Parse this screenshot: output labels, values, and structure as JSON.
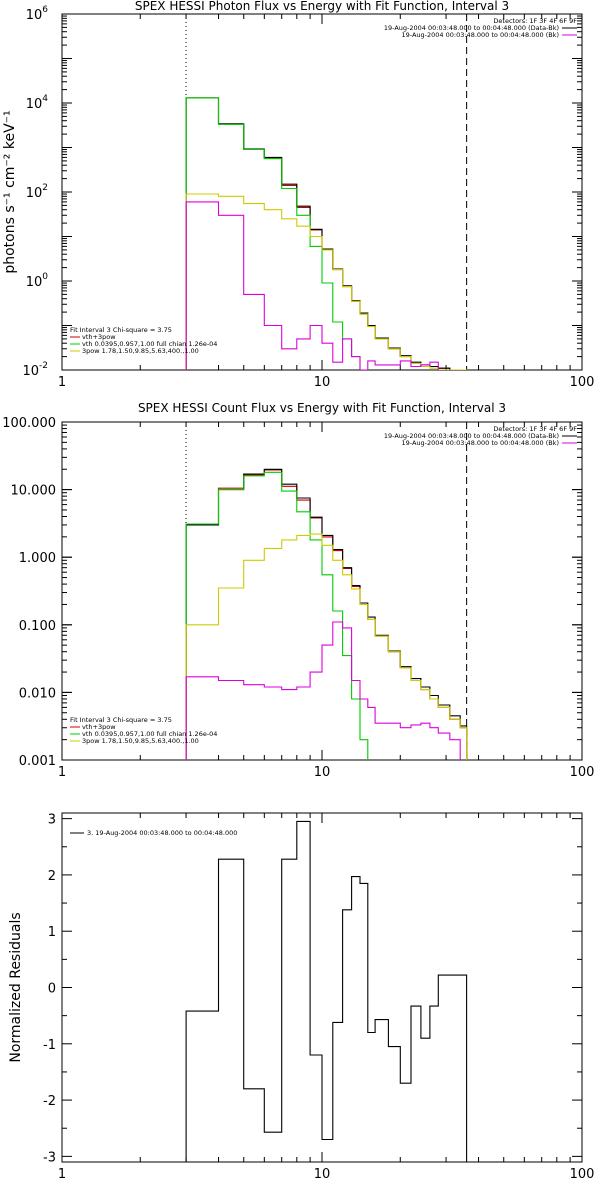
{
  "chart_data": [
    {
      "type": "line",
      "title": "SPEX HESSI Photon Flux vs Energy with Fit Function, Interval 3",
      "ylabel": "photons s⁻¹ cm⁻² keV⁻¹",
      "xlabel": "",
      "xscale": "log",
      "yscale": "log",
      "xlim": [
        1,
        100
      ],
      "ylim": [
        0.01,
        1000000
      ],
      "x_ticks": [
        {
          "value": 1,
          "label": "1"
        },
        {
          "value": 10,
          "label": "10"
        },
        {
          "value": 100,
          "label": "100"
        }
      ],
      "y_ticks": [
        {
          "value": 0.01,
          "label": "10",
          "exp": "-2"
        },
        {
          "value": 1,
          "label": "10",
          "exp": "0"
        },
        {
          "value": 100,
          "label": "10",
          "exp": "2"
        },
        {
          "value": 10000,
          "label": "10",
          "exp": "4"
        },
        {
          "value": 1000000,
          "label": "10",
          "exp": "6"
        }
      ],
      "vlines": [
        {
          "x": 3.0,
          "style": "dotted"
        },
        {
          "x": 36.0,
          "style": "dashed"
        }
      ],
      "legend_right": [
        {
          "text": "Detectors: 1F 3F 4F 6F 9F",
          "color": "#000000"
        },
        {
          "text": "19-Aug-2004 00:03:48.000 to 00:04:48.000 (Data-Bk)",
          "color": "#000000"
        },
        {
          "text": "19-Aug-2004 00:03:48.000 to 00:04:48.000 (Bk)",
          "color": "#dd00dd"
        }
      ],
      "legend_left_title": "Fit Interval 3   Chi-square = 3.75",
      "legend_left": [
        {
          "text": "vth+3pow",
          "color": "#cc0000"
        },
        {
          "text": "vth 0.0395,0.957,1.00  full chian 1.26e-04",
          "color": "#00cc00"
        },
        {
          "text": "3pow 1.78,1.50,9.85,5.63,400.,1.00",
          "color": "#cccc00"
        }
      ],
      "bin_edges": [
        3.0,
        4.0,
        5.0,
        6.0,
        7.0,
        8.0,
        9.0,
        10.0,
        11.0,
        12.0,
        13.0,
        14.0,
        15.0,
        16.0,
        18.0,
        20.0,
        22.0,
        24.0,
        26.0,
        28.0,
        31.0,
        34.0,
        36.0
      ],
      "series": [
        {
          "name": "vth+3pow",
          "color": "#cc0000",
          "values": [
            13000,
            3300,
            900,
            580,
            140,
            45,
            14,
            5,
            1.8,
            0.75,
            0.35,
            0.18,
            0.095,
            0.05,
            0.03,
            0.02,
            0.014,
            0.012,
            0.012,
            0.011,
            null,
            null
          ]
        },
        {
          "name": "Data-Bk",
          "color": "#000000",
          "values": [
            13000,
            3400,
            920,
            600,
            150,
            48,
            14.5,
            5.2,
            1.85,
            0.78,
            0.36,
            0.19,
            0.1,
            0.052,
            0.031,
            0.021,
            0.015,
            0.013,
            0.012,
            0.011,
            null,
            null
          ]
        },
        {
          "name": "vth",
          "color": "#00cc00",
          "values": [
            13000,
            3300,
            900,
            560,
            120,
            30,
            6,
            0.9,
            0.12,
            0.05,
            0.02,
            0.01,
            null,
            null,
            null,
            null,
            null,
            null,
            null,
            null,
            null,
            null
          ]
        },
        {
          "name": "3pow",
          "color": "#cccc00",
          "values": [
            90,
            80,
            55,
            40,
            25,
            17,
            10,
            5,
            1.8,
            0.75,
            0.35,
            0.18,
            0.095,
            0.05,
            0.03,
            0.02,
            0.014,
            0.012,
            0.011,
            0.01,
            0.01,
            0.01
          ]
        },
        {
          "name": "Bk",
          "color": "#dd00dd",
          "values": [
            60,
            30,
            0.5,
            0.1,
            0.03,
            0.05,
            0.1,
            0.04,
            0.015,
            0.05,
            0.02,
            0.01,
            0.016,
            0.013,
            0.013,
            0.016,
            0.012,
            0.013,
            0.015,
            null,
            null,
            null
          ]
        }
      ]
    },
    {
      "type": "line",
      "title": "SPEX HESSI Count Flux vs Energy with Fit Function, Interval 3",
      "xlabel": "",
      "ylabel": "",
      "xscale": "log",
      "yscale": "log",
      "xlim": [
        1,
        100
      ],
      "ylim": [
        0.001,
        100
      ],
      "x_ticks": [
        {
          "value": 1,
          "label": "1"
        },
        {
          "value": 10,
          "label": "10"
        },
        {
          "value": 100,
          "label": "100"
        }
      ],
      "y_ticks": [
        {
          "value": 0.001,
          "label": "0.001"
        },
        {
          "value": 0.01,
          "label": "0.010"
        },
        {
          "value": 0.1,
          "label": "0.100"
        },
        {
          "value": 1,
          "label": "1.000"
        },
        {
          "value": 10,
          "label": "10.000"
        },
        {
          "value": 100,
          "label": "100.000"
        }
      ],
      "vlines": [
        {
          "x": 3.0,
          "style": "dotted"
        },
        {
          "x": 36.0,
          "style": "dashed"
        }
      ],
      "legend_right": [
        {
          "text": "Detectors: 1F 3F 4F 6F 9F",
          "color": "#000000"
        },
        {
          "text": "19-Aug-2004 00:03:48.000 to 00:04:48.000 (Data-Bk)",
          "color": "#000000"
        },
        {
          "text": "19-Aug-2004 00:03:48.000 to 00:04:48.000 (Bk)",
          "color": "#dd00dd"
        }
      ],
      "legend_left_title": "Fit Interval 3   Chi-square = 3.75",
      "legend_left": [
        {
          "text": "vth+3pow",
          "color": "#cc0000"
        },
        {
          "text": "vth 0.0395,0.957,1.00  full chian 1.26e-04",
          "color": "#00cc00"
        },
        {
          "text": "3pow 1.78,1.50,9.85,5.63,400.,1.00",
          "color": "#cccc00"
        }
      ],
      "bin_edges": [
        3.0,
        4.0,
        5.0,
        6.0,
        7.0,
        8.0,
        9.0,
        10.0,
        11.0,
        12.0,
        13.0,
        14.0,
        15.0,
        16.0,
        18.0,
        20.0,
        22.0,
        24.0,
        26.0,
        28.0,
        31.0,
        34.0,
        36.0
      ],
      "series": [
        {
          "name": "vth+3pow",
          "color": "#cc0000",
          "values": [
            3.1,
            10.5,
            16.5,
            19.5,
            11.2,
            7,
            3.8,
            2.0,
            1.25,
            0.68,
            0.37,
            0.2,
            0.12,
            0.068,
            0.04,
            0.023,
            0.015,
            0.011,
            0.008,
            0.006,
            0.004,
            0.003
          ]
        },
        {
          "name": "Data-Bk",
          "color": "#000000",
          "values": [
            3.0,
            10.0,
            17.0,
            20.0,
            12.0,
            7.5,
            3.9,
            2.1,
            1.3,
            0.7,
            0.38,
            0.21,
            0.13,
            0.07,
            0.041,
            0.024,
            0.016,
            0.012,
            0.009,
            0.0065,
            0.0045,
            0.0032
          ]
        },
        {
          "name": "vth",
          "color": "#00cc00",
          "values": [
            3.1,
            10,
            16,
            18,
            9.5,
            4.7,
            1.8,
            0.55,
            0.16,
            0.035,
            0.008,
            0.002,
            0.0009,
            null,
            null,
            null,
            null,
            null,
            null,
            null,
            null,
            null
          ]
        },
        {
          "name": "3pow",
          "color": "#cccc00",
          "values": [
            0.1,
            0.35,
            0.9,
            1.35,
            1.8,
            2.1,
            2.2,
            1.5,
            0.9,
            0.55,
            0.34,
            0.2,
            0.12,
            0.068,
            0.04,
            0.023,
            0.015,
            0.011,
            0.008,
            0.006,
            0.004,
            0.003
          ]
        },
        {
          "name": "Bk",
          "color": "#dd00dd",
          "values": [
            0.017,
            0.015,
            0.013,
            0.012,
            0.011,
            0.012,
            0.02,
            0.05,
            0.11,
            0.09,
            0.015,
            0.008,
            0.006,
            0.0035,
            0.0035,
            0.003,
            0.0033,
            0.0035,
            0.003,
            0.0025,
            0.002,
            null
          ]
        }
      ]
    },
    {
      "type": "line",
      "title": "",
      "ylabel": "Normalized Residuals",
      "xlabel": "",
      "xscale": "log",
      "yscale": "linear",
      "xlim": [
        1,
        100
      ],
      "ylim": [
        -3.1,
        3.1
      ],
      "x_ticks": [
        {
          "value": 1,
          "label": "1"
        },
        {
          "value": 10,
          "label": "10"
        },
        {
          "value": 100,
          "label": "100"
        }
      ],
      "y_ticks": [
        {
          "value": -3,
          "label": "-3"
        },
        {
          "value": -2,
          "label": "-2"
        },
        {
          "value": -1,
          "label": "-1"
        },
        {
          "value": 0,
          "label": "0"
        },
        {
          "value": 1,
          "label": "1"
        },
        {
          "value": 2,
          "label": "2"
        },
        {
          "value": 3,
          "label": "3"
        }
      ],
      "legend_left": [
        {
          "text": "3. 19-Aug-2004 00:03:48.000 to 00:04:48.000",
          "color": "#000000"
        }
      ],
      "bin_edges": [
        3.0,
        4.0,
        5.0,
        6.0,
        7.0,
        8.0,
        9.0,
        10.0,
        11.0,
        12.0,
        13.0,
        14.0,
        15.0,
        16.0,
        18.0,
        20.0,
        22.0,
        24.0,
        26.0,
        28.0,
        31.0,
        34.0,
        36.0
      ],
      "series": [
        {
          "name": "3. 19-Aug-2004 00:03:48.000 to 00:04:48.000",
          "color": "#000000",
          "values": [
            -0.42,
            2.28,
            -1.8,
            -2.57,
            2.28,
            2.95,
            -1.2,
            -2.7,
            -0.62,
            1.38,
            1.97,
            1.85,
            -0.8,
            -0.57,
            -1.05,
            -1.7,
            -0.33,
            -0.9,
            -0.33,
            0.22,
            0.22,
            0.22
          ]
        }
      ]
    }
  ]
}
